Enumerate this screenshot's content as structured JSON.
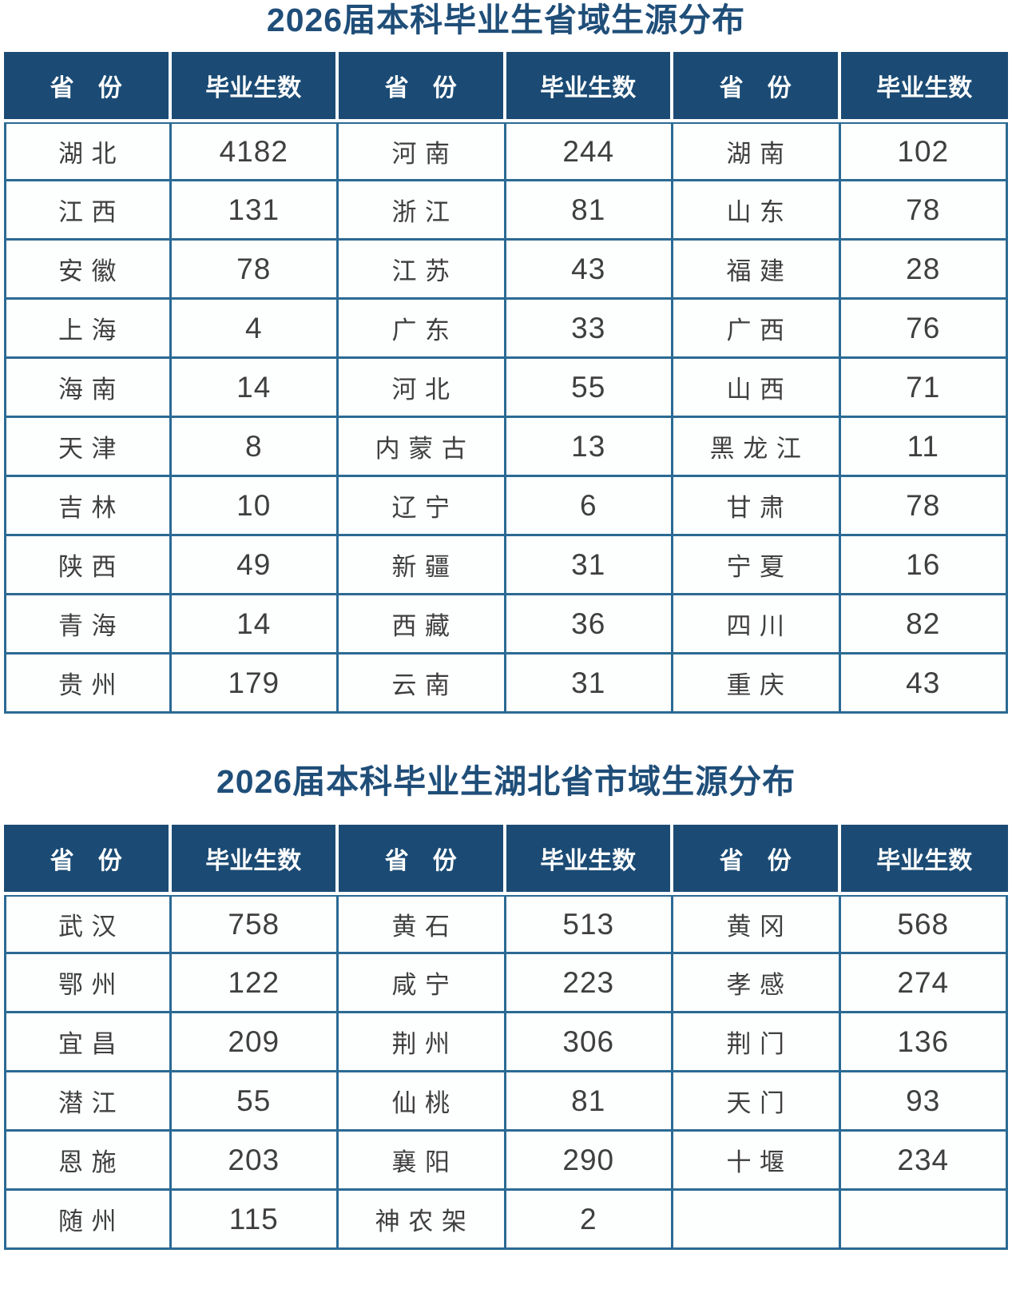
{
  "page": {
    "background": "#ffffff",
    "accent": {
      "title_color": "#1f4e79",
      "header_bg": "#1b4b74",
      "header_text": "#ffffff",
      "border_blue": "#2b6a94",
      "cell_text": "#3f3f3f"
    }
  },
  "tables": [
    {
      "id": "provincial-distribution",
      "title": "2026届本科毕业生省域生源分布",
      "headers": [
        "省　份",
        "毕业生数",
        "省　份",
        "毕业生数",
        "省　份",
        "毕业生数"
      ],
      "rows": [
        [
          "湖 北",
          "4182",
          "河 南",
          "244",
          "湖 南",
          "102"
        ],
        [
          "江 西",
          "131",
          "浙 江",
          "81",
          "山 东",
          "78"
        ],
        [
          "安 徽",
          "78",
          "江 苏",
          "43",
          "福 建",
          "28"
        ],
        [
          "上 海",
          "4",
          "广 东",
          "33",
          "广 西",
          "76"
        ],
        [
          "海 南",
          "14",
          "河 北",
          "55",
          "山 西",
          "71"
        ],
        [
          "天 津",
          "8",
          "内 蒙 古",
          "13",
          "黑 龙 江",
          "11"
        ],
        [
          "吉 林",
          "10",
          "辽 宁",
          "6",
          "甘 肃",
          "78"
        ],
        [
          "陕 西",
          "49",
          "新 疆",
          "31",
          "宁 夏",
          "16"
        ],
        [
          "青 海",
          "14",
          "西 藏",
          "36",
          "四 川",
          "82"
        ],
        [
          "贵 州",
          "179",
          "云 南",
          "31",
          "重 庆",
          "43"
        ]
      ]
    },
    {
      "id": "hubei-city-distribution",
      "title": "2026届本科毕业生湖北省市域生源分布",
      "headers": [
        "省　份",
        "毕业生数",
        "省　份",
        "毕业生数",
        "省　份",
        "毕业生数"
      ],
      "rows": [
        [
          "武 汉",
          "758",
          "黄 石",
          "513",
          "黄 冈",
          "568"
        ],
        [
          "鄂 州",
          "122",
          "咸 宁",
          "223",
          "孝 感",
          "274"
        ],
        [
          "宜 昌",
          "209",
          "荆 州",
          "306",
          "荆 门",
          "136"
        ],
        [
          "潜 江",
          "55",
          "仙 桃",
          "81",
          "天 门",
          "93"
        ],
        [
          "恩 施",
          "203",
          "襄 阳",
          "290",
          "十 堰",
          "234"
        ],
        [
          "随 州",
          "115",
          "神 农 架",
          "2",
          "",
          ""
        ]
      ]
    }
  ]
}
